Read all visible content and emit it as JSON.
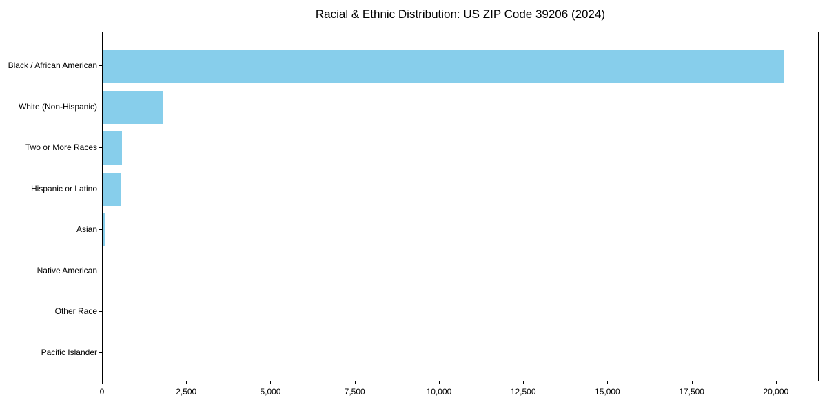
{
  "chart_data": {
    "type": "bar",
    "orientation": "horizontal",
    "title": "Racial & Ethnic Distribution: US ZIP Code 39206 (2024)",
    "categories": [
      "Black / African American",
      "White (Non-Hispanic)",
      "Two or More Races",
      "Hispanic or Latino",
      "Asian",
      "Native American",
      "Other Race",
      "Pacific Islander"
    ],
    "values": [
      20200,
      1790,
      580,
      550,
      60,
      15,
      8,
      4
    ],
    "xlabel": "",
    "ylabel": "",
    "xlim": [
      0,
      21230
    ],
    "xticks": [
      {
        "value": 0,
        "label": "0"
      },
      {
        "value": 2500,
        "label": "2,500"
      },
      {
        "value": 5000,
        "label": "5,000"
      },
      {
        "value": 7500,
        "label": "7,500"
      },
      {
        "value": 10000,
        "label": "10,000"
      },
      {
        "value": 12500,
        "label": "12,500"
      },
      {
        "value": 15000,
        "label": "15,000"
      },
      {
        "value": 17500,
        "label": "17,500"
      },
      {
        "value": 20000,
        "label": "20,000"
      }
    ],
    "bar_color": "#87CEEB",
    "axis_color": "#000000",
    "text_color": "#000000",
    "grid": false,
    "legend": null
  }
}
